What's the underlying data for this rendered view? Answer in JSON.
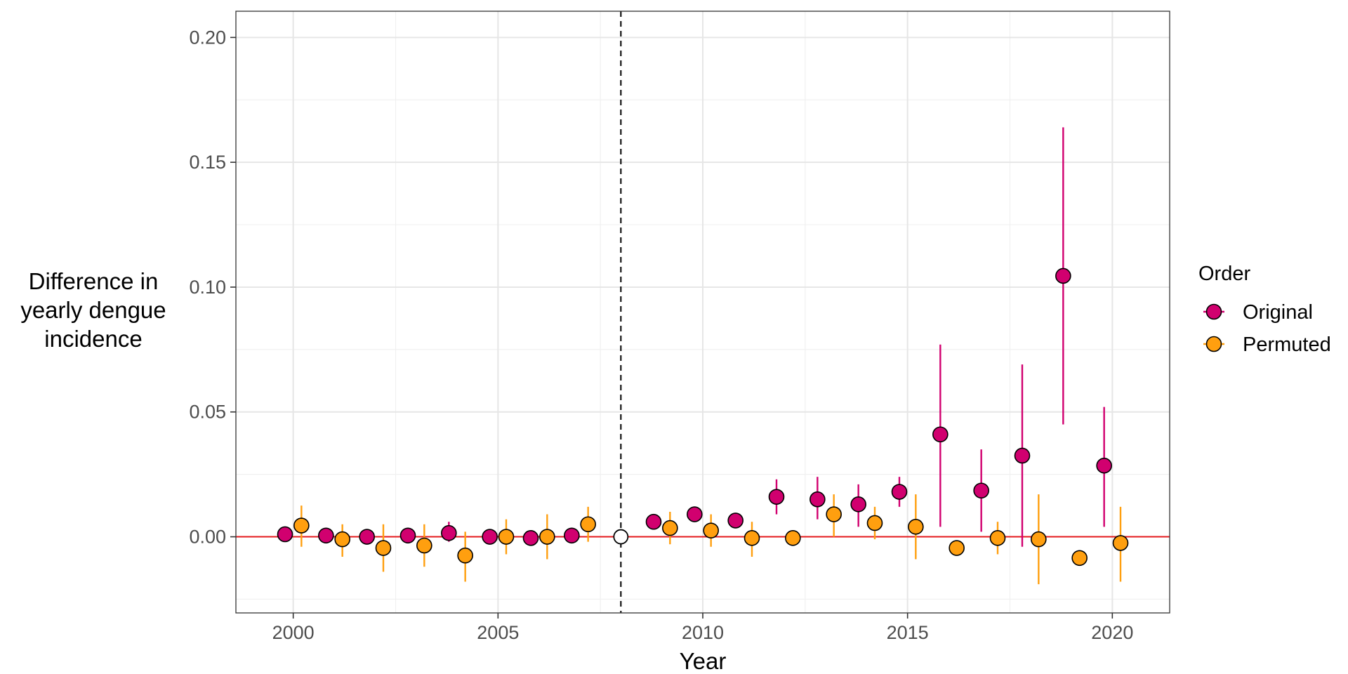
{
  "chart_data": {
    "type": "scatter",
    "title": "",
    "xlabel": "Year",
    "ylabel_lines": [
      "Difference in",
      "yearly dengue",
      "incidence"
    ],
    "xlim": [
      1998.6,
      2021.4
    ],
    "ylim": [
      -0.0305,
      0.2105
    ],
    "xticks": [
      2000,
      2005,
      2010,
      2015,
      2020
    ],
    "xtick_labels": [
      "2000",
      "2005",
      "2010",
      "2015",
      "2020"
    ],
    "yticks": [
      0.0,
      0.05,
      0.1,
      0.15,
      0.2
    ],
    "ytick_labels": [
      "0.00",
      "0.05",
      "0.10",
      "0.15",
      "0.20"
    ],
    "grid": true,
    "reference_line": {
      "y": 0,
      "color": "#e41a1c"
    },
    "intervention_line": {
      "x": 2008,
      "style": "dashed"
    },
    "intervention_point": {
      "x": 2008,
      "y": 0
    },
    "legend": {
      "title": "Order",
      "placement": "right"
    },
    "series": [
      {
        "name": "Original",
        "color": "#d1006f",
        "points": [
          {
            "x": 2000,
            "y": 0.001,
            "lo": 0.0,
            "hi": 0.002
          },
          {
            "x": 2001,
            "y": 0.0005,
            "lo": 0.0,
            "hi": 0.001
          },
          {
            "x": 2002,
            "y": 0.0,
            "lo": -0.001,
            "hi": 0.001
          },
          {
            "x": 2003,
            "y": 0.0005,
            "lo": 0.0,
            "hi": 0.001
          },
          {
            "x": 2004,
            "y": 0.0015,
            "lo": -0.002,
            "hi": 0.006
          },
          {
            "x": 2005,
            "y": 0.0,
            "lo": -0.001,
            "hi": 0.001
          },
          {
            "x": 2006,
            "y": -0.0005,
            "lo": -0.001,
            "hi": 0.0
          },
          {
            "x": 2007,
            "y": 0.0005,
            "lo": 0.0,
            "hi": 0.001
          },
          {
            "x": 2009,
            "y": 0.006,
            "lo": 0.005,
            "hi": 0.007
          },
          {
            "x": 2010,
            "y": 0.009,
            "lo": 0.008,
            "hi": 0.01
          },
          {
            "x": 2011,
            "y": 0.0065,
            "lo": 0.005,
            "hi": 0.008
          },
          {
            "x": 2012,
            "y": 0.016,
            "lo": 0.009,
            "hi": 0.023
          },
          {
            "x": 2013,
            "y": 0.015,
            "lo": 0.007,
            "hi": 0.024
          },
          {
            "x": 2014,
            "y": 0.013,
            "lo": 0.004,
            "hi": 0.021
          },
          {
            "x": 2015,
            "y": 0.018,
            "lo": 0.012,
            "hi": 0.024
          },
          {
            "x": 2016,
            "y": 0.041,
            "lo": 0.004,
            "hi": 0.077
          },
          {
            "x": 2017,
            "y": 0.0185,
            "lo": 0.002,
            "hi": 0.035
          },
          {
            "x": 2018,
            "y": 0.0325,
            "lo": -0.004,
            "hi": 0.069
          },
          {
            "x": 2019,
            "y": 0.1045,
            "lo": 0.045,
            "hi": 0.164
          },
          {
            "x": 2020,
            "y": 0.0285,
            "lo": 0.004,
            "hi": 0.052
          }
        ]
      },
      {
        "name": "Permuted",
        "color": "#ff9f0f",
        "points": [
          {
            "x": 2000,
            "y": 0.0045,
            "lo": -0.004,
            "hi": 0.0125
          },
          {
            "x": 2001,
            "y": -0.001,
            "lo": -0.008,
            "hi": 0.005
          },
          {
            "x": 2002,
            "y": -0.0045,
            "lo": -0.014,
            "hi": 0.005
          },
          {
            "x": 2003,
            "y": -0.0035,
            "lo": -0.012,
            "hi": 0.005
          },
          {
            "x": 2004,
            "y": -0.0075,
            "lo": -0.018,
            "hi": 0.002
          },
          {
            "x": 2005,
            "y": 0.0,
            "lo": -0.007,
            "hi": 0.007
          },
          {
            "x": 2006,
            "y": 0.0,
            "lo": -0.009,
            "hi": 0.009
          },
          {
            "x": 2007,
            "y": 0.005,
            "lo": -0.002,
            "hi": 0.012
          },
          {
            "x": 2009,
            "y": 0.0035,
            "lo": -0.003,
            "hi": 0.01
          },
          {
            "x": 2010,
            "y": 0.0025,
            "lo": -0.004,
            "hi": 0.009
          },
          {
            "x": 2011,
            "y": -0.0005,
            "lo": -0.008,
            "hi": 0.006
          },
          {
            "x": 2012,
            "y": -0.0005,
            "lo": -0.001,
            "hi": 0.0
          },
          {
            "x": 2013,
            "y": 0.009,
            "lo": 0.0,
            "hi": 0.017
          },
          {
            "x": 2014,
            "y": 0.0055,
            "lo": -0.001,
            "hi": 0.012
          },
          {
            "x": 2015,
            "y": 0.004,
            "lo": -0.009,
            "hi": 0.017
          },
          {
            "x": 2016,
            "y": -0.0045,
            "lo": -0.005,
            "hi": -0.004
          },
          {
            "x": 2017,
            "y": -0.0005,
            "lo": -0.007,
            "hi": 0.006
          },
          {
            "x": 2018,
            "y": -0.001,
            "lo": -0.019,
            "hi": 0.017
          },
          {
            "x": 2019,
            "y": -0.0085,
            "lo": -0.009,
            "hi": -0.008
          },
          {
            "x": 2020,
            "y": -0.0025,
            "lo": -0.018,
            "hi": 0.012
          }
        ]
      }
    ]
  }
}
